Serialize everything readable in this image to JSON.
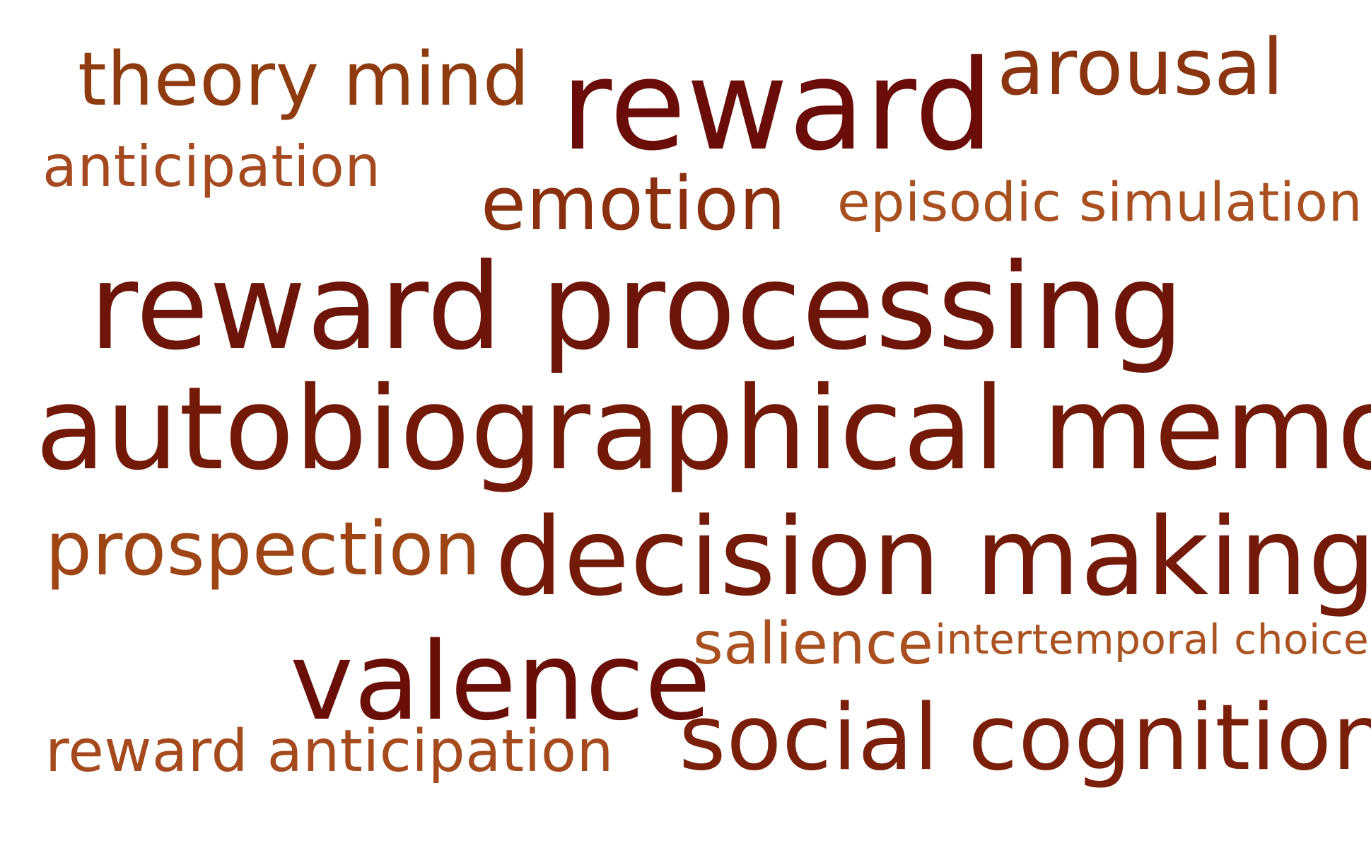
{
  "words": [
    {
      "id": "theory-mind",
      "text": "theory mind",
      "color": "#8e3b0f"
    },
    {
      "id": "reward",
      "text": "reward",
      "color": "#6a0c08"
    },
    {
      "id": "arousal",
      "text": "arousal",
      "color": "#8a3410"
    },
    {
      "id": "anticipation",
      "text": "anticipation",
      "color": "#a54a20"
    },
    {
      "id": "emotion",
      "text": "emotion",
      "color": "#8b300e"
    },
    {
      "id": "episodic-simulation",
      "text": "episodic simulation",
      "color": "#a8501f"
    },
    {
      "id": "reward-processing",
      "text": "reward processing",
      "color": "#6c1508"
    },
    {
      "id": "autobiographical-memory",
      "text": "autobiographical memory",
      "color": "#721908"
    },
    {
      "id": "prospection",
      "text": "prospection",
      "color": "#9e4516"
    },
    {
      "id": "decision-making",
      "text": "decision making",
      "color": "#731a08"
    },
    {
      "id": "salience",
      "text": "salience",
      "color": "#a8501f"
    },
    {
      "id": "intertemporal-choice",
      "text": "intertemporal choice",
      "color": "#aa5220"
    },
    {
      "id": "valence",
      "text": "valence",
      "color": "#6a0f08"
    },
    {
      "id": "reward-anticipation",
      "text": "reward anticipation",
      "color": "#a54a1c"
    },
    {
      "id": "social-cognition",
      "text": "social cognition",
      "color": "#7a1f0a"
    }
  ]
}
